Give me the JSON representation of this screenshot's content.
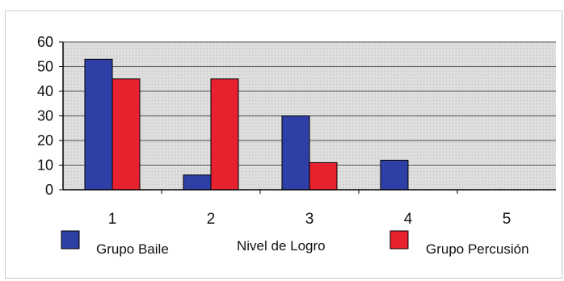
{
  "chart_data": {
    "type": "bar",
    "categories": [
      "1",
      "2",
      "3",
      "4",
      "5"
    ],
    "xlabel": "Nivel de Logro",
    "ylim": [
      0,
      60
    ],
    "yticks": [
      "0",
      "10",
      "20",
      "30",
      "40",
      "50",
      "60"
    ],
    "grid": true,
    "legend_position": "bottom",
    "series": [
      {
        "name": "Grupo Baile",
        "values": [
          53,
          6,
          30,
          12,
          null
        ],
        "color": "#2e3fa6"
      },
      {
        "name": "Grupo Percusión",
        "values": [
          45,
          45,
          11,
          null,
          null
        ],
        "color": "#e8212f"
      }
    ]
  }
}
